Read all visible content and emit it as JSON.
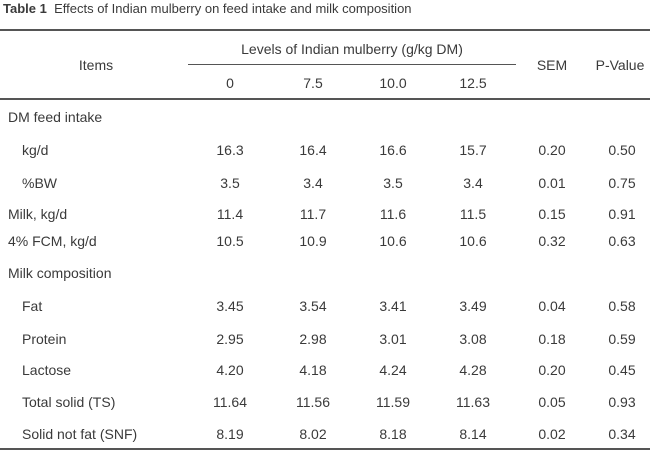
{
  "caption": {
    "table_number": "Table 1",
    "title": "Effects of Indian mulberry on feed intake and milk composition"
  },
  "header": {
    "items": "Items",
    "levels": "Levels of Indian mulberry (g/kg DM)",
    "level_values": [
      "0",
      "7.5",
      "10.0",
      "12.5"
    ],
    "sem": "SEM",
    "pvalue": "P-Value"
  },
  "rows": [
    {
      "label": "DM feed intake",
      "indent": false,
      "values": []
    },
    {
      "label": "kg/d",
      "indent": true,
      "values": [
        "16.3",
        "16.4",
        "16.6",
        "15.7",
        "0.20",
        "0.50"
      ]
    },
    {
      "label": "%BW",
      "indent": true,
      "values": [
        "3.5",
        "3.4",
        "3.5",
        "3.4",
        "0.01",
        "0.75"
      ]
    },
    {
      "label": "Milk, kg/d",
      "indent": false,
      "values": [
        "11.4",
        "11.7",
        "11.6",
        "11.5",
        "0.15",
        "0.91"
      ]
    },
    {
      "label": "4% FCM, kg/d",
      "indent": false,
      "values": [
        "10.5",
        "10.9",
        "10.6",
        "10.6",
        "0.32",
        "0.63"
      ]
    },
    {
      "label": "Milk composition",
      "indent": false,
      "values": []
    },
    {
      "label": "Fat",
      "indent": true,
      "values": [
        "3.45",
        "3.54",
        "3.41",
        "3.49",
        "0.04",
        "0.58"
      ]
    },
    {
      "label": "Protein",
      "indent": true,
      "values": [
        "2.95",
        "2.98",
        "3.01",
        "3.08",
        "0.18",
        "0.59"
      ]
    },
    {
      "label": "Lactose",
      "indent": true,
      "values": [
        "4.20",
        "4.18",
        "4.24",
        "4.28",
        "0.20",
        "0.45"
      ]
    },
    {
      "label": "Total solid (TS)",
      "indent": true,
      "values": [
        "11.64",
        "11.56",
        "11.59",
        "11.63",
        "0.05",
        "0.93"
      ]
    },
    {
      "label": "Solid not fat (SNF)",
      "indent": true,
      "values": [
        "8.19",
        "8.02",
        "8.18",
        "8.14",
        "0.02",
        "0.34"
      ]
    }
  ]
}
